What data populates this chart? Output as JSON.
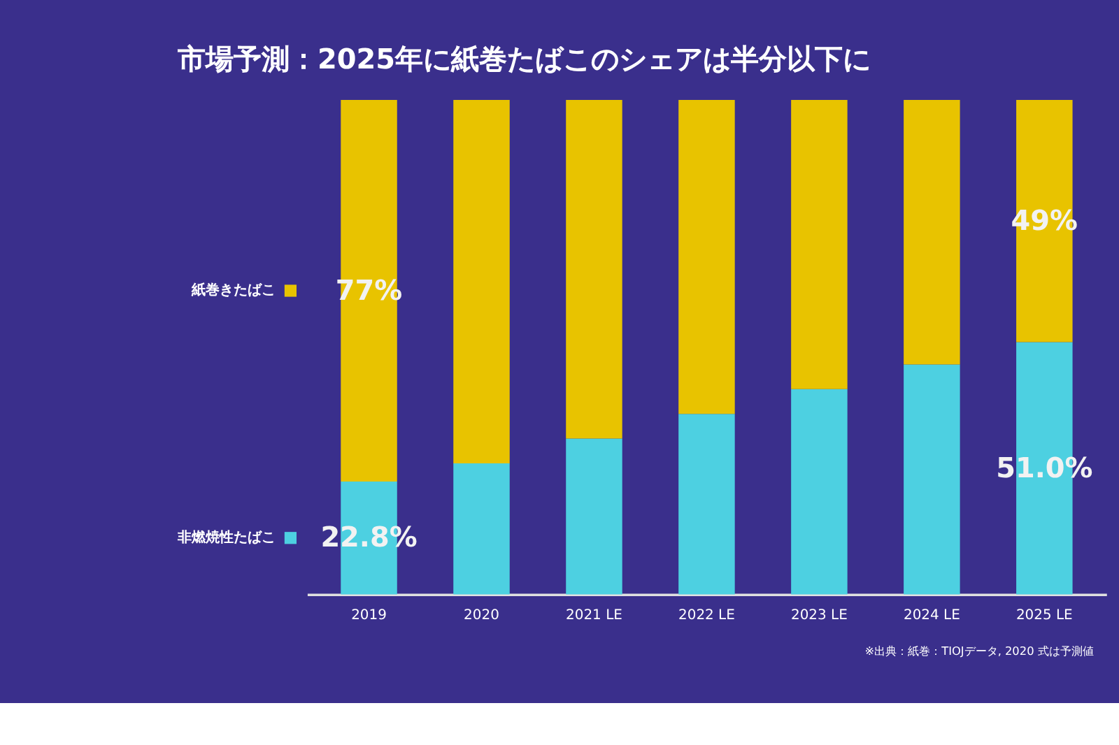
{
  "chart_data": {
    "type": "bar",
    "stacked": true,
    "title": "市場予測：2025年に紙巻たばこのシェアは半分以下に",
    "categories": [
      "2019",
      "2020",
      "2021 LE",
      "2022 LE",
      "2023 LE",
      "2024 LE",
      "2025 LE"
    ],
    "series": [
      {
        "name": "非燃焼性たばこ",
        "color": "#4dd0e1",
        "values": [
          22.8,
          26.5,
          31.5,
          36.5,
          41.5,
          46.5,
          51.0
        ],
        "value_labels": [
          "22.8%",
          null,
          null,
          null,
          null,
          null,
          "51.0%"
        ]
      },
      {
        "name": "紙巻きたばこ",
        "color": "#e8c300",
        "values": [
          77.2,
          73.5,
          68.5,
          63.5,
          58.5,
          53.5,
          49.0
        ],
        "value_labels": [
          "77%",
          null,
          null,
          null,
          null,
          null,
          "49%"
        ]
      }
    ],
    "ylim": [
      0,
      100
    ],
    "tick_labels": "x",
    "legend": "left",
    "annotations": [
      "※出典：紙巻：TIOJデータ, 2020",
      "式は予測値"
    ]
  }
}
